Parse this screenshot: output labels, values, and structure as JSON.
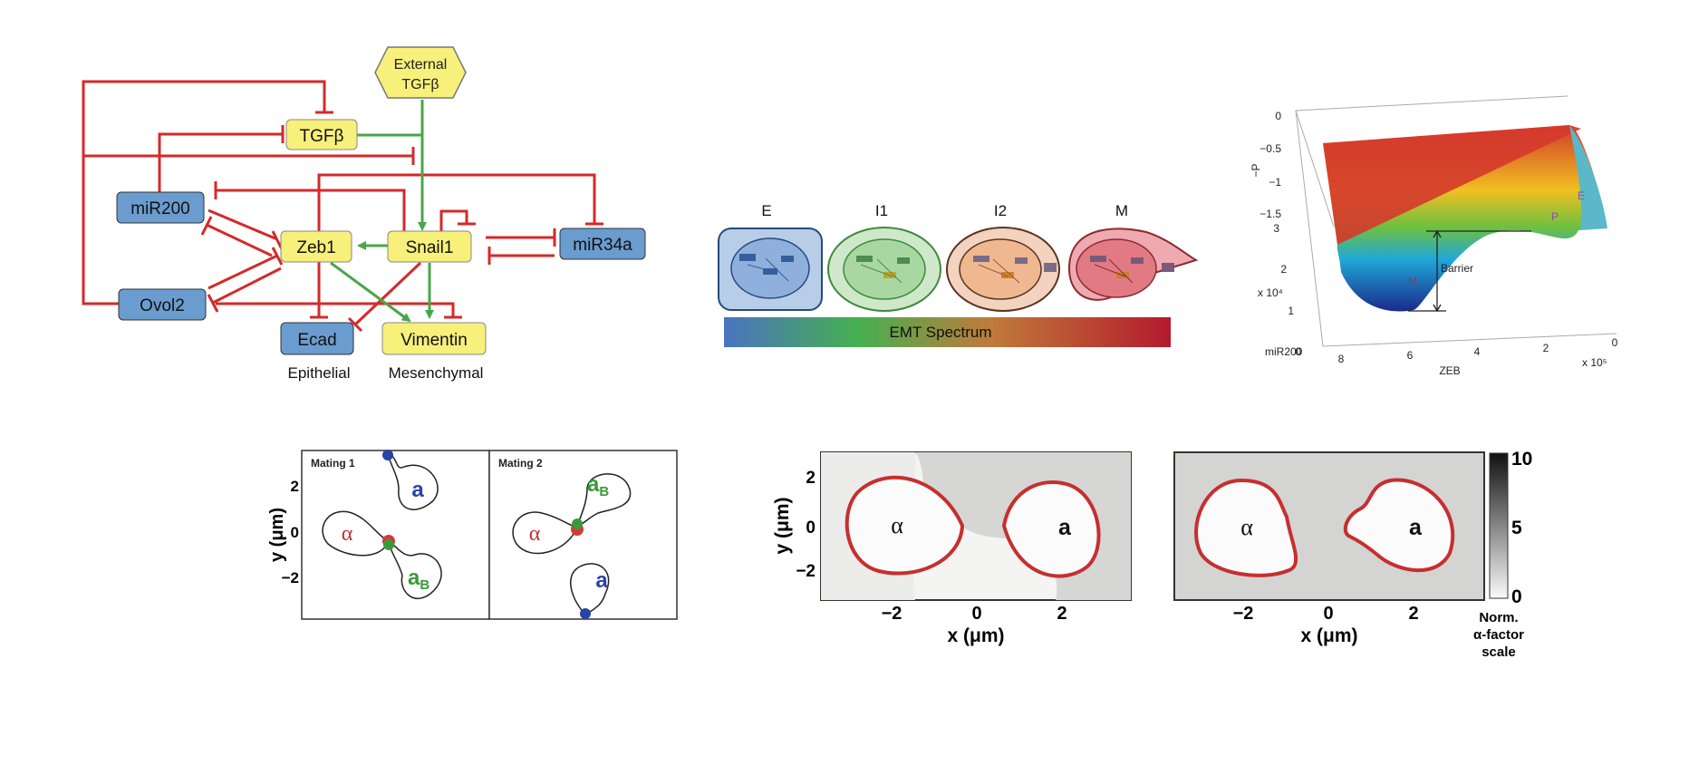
{
  "network": {
    "nodes": {
      "external_tgfb_line1": "External",
      "external_tgfb_line2": "TGFβ",
      "tgfb": "TGFβ",
      "mir200": "miR200",
      "zeb1": "Zeb1",
      "snail1": "Snail1",
      "mir34a": "miR34a",
      "ovol2": "Ovol2",
      "ecad": "Ecad",
      "vimentin": "Vimentin"
    },
    "captions": {
      "epithelial": "Epithelial",
      "mesenchymal": "Mesenchymal"
    },
    "colors": {
      "inhibition": "#d42a2a",
      "activation": "#4aa64a",
      "blue_node": "#6b9ccf",
      "yellow_node": "#f7f07a"
    }
  },
  "emt": {
    "states": [
      "E",
      "I1",
      "I2",
      "M"
    ],
    "spectrum_label": "EMT Spectrum",
    "colors": [
      "#4d7fc4",
      "#52b552",
      "#e09055",
      "#d0333f"
    ]
  },
  "landscape": {
    "z_label": "−P",
    "z_ticks": [
      "0",
      "−0.5",
      "−1",
      "−1.5"
    ],
    "y_label": "miR200",
    "y_ticks": [
      "3",
      "2",
      "1",
      "0"
    ],
    "y_scale": "x 10⁴",
    "x_label": "ZEB",
    "x_ticks": [
      "8",
      "6",
      "4",
      "2",
      "0"
    ],
    "x_scale": "x 10⁵",
    "barrier_label": "Barrier",
    "state_labels": {
      "m": "M",
      "p": "P",
      "e": "E"
    }
  },
  "mating": {
    "panel1_title": "Mating 1",
    "panel2_title": "Mating 2",
    "y_axis_label": "y (μm)",
    "y_ticks": [
      "2",
      "0",
      "−2"
    ],
    "alpha": "α",
    "a": "a",
    "a_sub": "B"
  },
  "alpha_factor": {
    "x_axis_label": "x (μm)",
    "y_axis_label": "y (μm)",
    "x_ticks": [
      "−2",
      "0",
      "2"
    ],
    "y_ticks": [
      "2",
      "0",
      "−2"
    ],
    "alpha": "α",
    "a": "a",
    "colorbar_ticks": [
      "10",
      "5",
      "0"
    ],
    "colorbar_title_1": "Norm.",
    "colorbar_title_2": "α-factor",
    "colorbar_title_3": "scale"
  }
}
